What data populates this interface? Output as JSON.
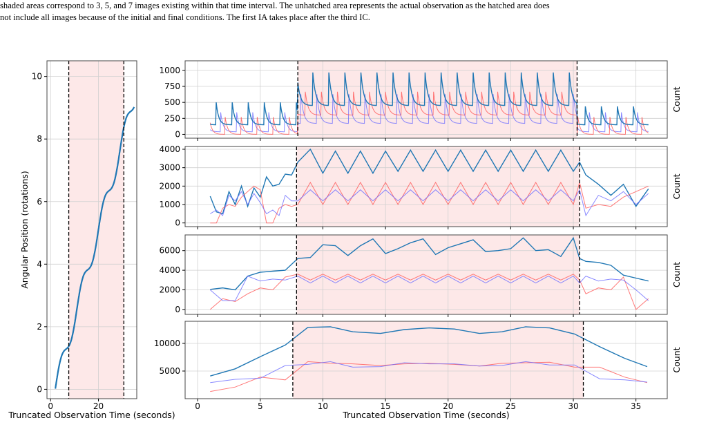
{
  "caption": {
    "line1": "shaded areas correspond to 3, 5, and 7 images existing within that time interval. The unhatched area represents the actual observation as the hatched area does",
    "line2": "not include all images because of the initial and final conditions. The first IA takes place after the third IC."
  },
  "colors": {
    "blue": "#1f77b4",
    "red": "#ff5555",
    "purple": "#6b6bff",
    "shade": "#fde8e8",
    "grid": "#d0d0d0"
  },
  "chart_data": [
    {
      "type": "line",
      "xlabel": "Truncated Observation Time (seconds)",
      "ylabel": "Angular Position (rotations)",
      "xlim": [
        -1.5,
        36
      ],
      "ylim": [
        -0.3,
        10.5
      ],
      "xticks": [
        0,
        20
      ],
      "yticks": [
        0,
        2,
        4,
        6,
        8,
        10
      ],
      "grid": true,
      "shaded_interval": [
        7.6,
        30.6
      ],
      "series": [
        {
          "curve": "angular position = 0.282 t + 0.32 sin(0.7 t)",
          "x": [
            2,
            3,
            4,
            5,
            6,
            7,
            8,
            9,
            10,
            11,
            12,
            13,
            14,
            15,
            16,
            17,
            18,
            19,
            20,
            21,
            22,
            23,
            24,
            25,
            26,
            27,
            28,
            29,
            30,
            31,
            32,
            33,
            34,
            35
          ],
          "values": [
            0.0,
            0.79,
            1.0,
            1.03,
            1.5,
            1.58,
            1.89,
            2.71,
            2.64,
            2.62,
            3.3,
            3.5,
            3.8,
            4.62,
            4.71,
            4.86,
            5.25,
            5.6,
            5.88,
            5.79,
            6.44,
            6.72,
            6.86,
            6.84,
            7.37,
            7.65,
            7.87,
            8.02,
            8.3,
            8.76,
            8.93,
            9.2,
            9.79,
            10.0
          ]
        }
      ]
    },
    {
      "type": "line",
      "ylabel": "Count",
      "xlim": [
        -1,
        37.5
      ],
      "ylim": [
        -60,
        1150
      ],
      "yticks": [
        0,
        250,
        500,
        750,
        1000
      ],
      "xticks": [
        0,
        5,
        10,
        15,
        20,
        25,
        30,
        35
      ],
      "grid": true,
      "shaded_interval": [
        8.0,
        30.3
      ],
      "series": [
        {
          "color": "blue",
          "description": "peaks near 1050, baseline ~450 inside window; ~200 outside"
        },
        {
          "color": "red",
          "values_note": "oscillating 300-700"
        },
        {
          "color": "purple",
          "values_note": "oscillating 170-650"
        }
      ]
    },
    {
      "type": "line",
      "ylabel": "Count",
      "xlim": [
        -1,
        37.5
      ],
      "ylim": [
        -200,
        4150
      ],
      "yticks": [
        0,
        1000,
        2000,
        3000,
        4000
      ],
      "xticks": [
        0,
        5,
        10,
        15,
        20,
        25,
        30,
        35
      ],
      "grid": true,
      "shaded_interval": [
        7.9,
        30.5
      ],
      "series": [
        {
          "color": "blue",
          "x": [
            1,
            1.5,
            2,
            2.5,
            3,
            3.5,
            4,
            4.5,
            5,
            5.5,
            6,
            6.5,
            7,
            7.5,
            8,
            9,
            10,
            11,
            12,
            13,
            14,
            15,
            16,
            17,
            18,
            19,
            20,
            21,
            22,
            23,
            24,
            25,
            26,
            27,
            28,
            29,
            30,
            30.5,
            31,
            32,
            33,
            34,
            35,
            36
          ],
          "values": [
            1450,
            600,
            500,
            1700,
            1000,
            2000,
            900,
            1900,
            1400,
            2500,
            2000,
            2100,
            2650,
            2600,
            3300,
            4000,
            2700,
            3900,
            2700,
            3900,
            2700,
            3900,
            2800,
            3950,
            2800,
            3950,
            2800,
            3950,
            2800,
            3950,
            2800,
            3950,
            2800,
            3950,
            2800,
            3950,
            2800,
            3300,
            2600,
            2100,
            1500,
            2100,
            900,
            1850
          ]
        },
        {
          "color": "red",
          "values_note": "oscillating 900-2200"
        },
        {
          "color": "purple",
          "values_note": "oscillating 900-2000"
        }
      ]
    },
    {
      "type": "line",
      "ylabel": "Count",
      "xlim": [
        -1,
        37.5
      ],
      "ylim": [
        -500,
        7600
      ],
      "yticks": [
        0,
        2000,
        4000,
        6000
      ],
      "xticks": [
        0,
        5,
        10,
        15,
        20,
        25,
        30,
        35
      ],
      "grid": true,
      "shaded_interval": [
        7.9,
        30.5
      ],
      "series": [
        {
          "color": "blue",
          "x": [
            1,
            2,
            3,
            4,
            5,
            6,
            7,
            8,
            9,
            10,
            11,
            12,
            13,
            14,
            15,
            16,
            17,
            18,
            19,
            20,
            21,
            22,
            23,
            24,
            25,
            26,
            27,
            28,
            29,
            30,
            30.5,
            31,
            32,
            33,
            34,
            35,
            36
          ],
          "values": [
            2050,
            2200,
            2000,
            3400,
            3800,
            3900,
            4000,
            5200,
            5300,
            6600,
            6500,
            5500,
            6500,
            7200,
            5700,
            6200,
            6800,
            7200,
            5600,
            6300,
            6700,
            7100,
            5900,
            6000,
            6200,
            7300,
            6000,
            6100,
            5400,
            7300,
            5200,
            4900,
            4800,
            4500,
            3500,
            3200,
            2900
          ]
        },
        {
          "color": "red",
          "values_note": "around 3000-3500 inside window"
        },
        {
          "color": "purple",
          "values_note": "around 2500-3600 inside window"
        }
      ]
    },
    {
      "type": "line",
      "xlabel": "Truncated Observation Time (seconds)",
      "ylabel": "Count",
      "xlim": [
        -1,
        37.5
      ],
      "ylim": [
        0,
        14000
      ],
      "yticks": [
        5000,
        10000
      ],
      "xticks": [
        0,
        5,
        10,
        15,
        20,
        25,
        30,
        35
      ],
      "grid": true,
      "shaded_interval": [
        7.6,
        30.8
      ],
      "series": [
        {
          "color": "blue",
          "x": [
            1,
            3,
            5,
            7,
            8.8,
            10.6,
            12.4,
            14.6,
            16.5,
            18.5,
            20.5,
            22.5,
            24.3,
            26.2,
            28.1,
            30.1,
            32.1,
            34.1,
            35.9
          ],
          "values": [
            4100,
            5400,
            7600,
            9700,
            12900,
            13000,
            12100,
            11800,
            12500,
            12800,
            12600,
            11800,
            12100,
            13000,
            12800,
            11700,
            9400,
            7300,
            5800
          ]
        },
        {
          "color": "red",
          "x": [
            1,
            3,
            5,
            7,
            8.8,
            10.6,
            12.4,
            14.6,
            16.5,
            18.5,
            20.5,
            22.5,
            24.3,
            26.2,
            28.1,
            30.1,
            32.1,
            34.1,
            35.9
          ],
          "values": [
            1300,
            2100,
            3900,
            3400,
            6700,
            6400,
            6300,
            6000,
            6300,
            6400,
            6200,
            5900,
            6400,
            6500,
            6600,
            5700,
            5700,
            3900,
            2900
          ]
        },
        {
          "color": "purple",
          "x": [
            1,
            3,
            5,
            7,
            8.8,
            10.6,
            12.4,
            14.6,
            16.5,
            18.5,
            20.5,
            22.5,
            24.3,
            26.2,
            28.1,
            30.1,
            32.1,
            34.1,
            35.9
          ],
          "values": [
            2900,
            3500,
            3700,
            6000,
            6200,
            6700,
            5700,
            5800,
            6500,
            6300,
            6300,
            5900,
            6000,
            6700,
            6100,
            6100,
            3600,
            3400,
            3000
          ]
        }
      ]
    }
  ]
}
